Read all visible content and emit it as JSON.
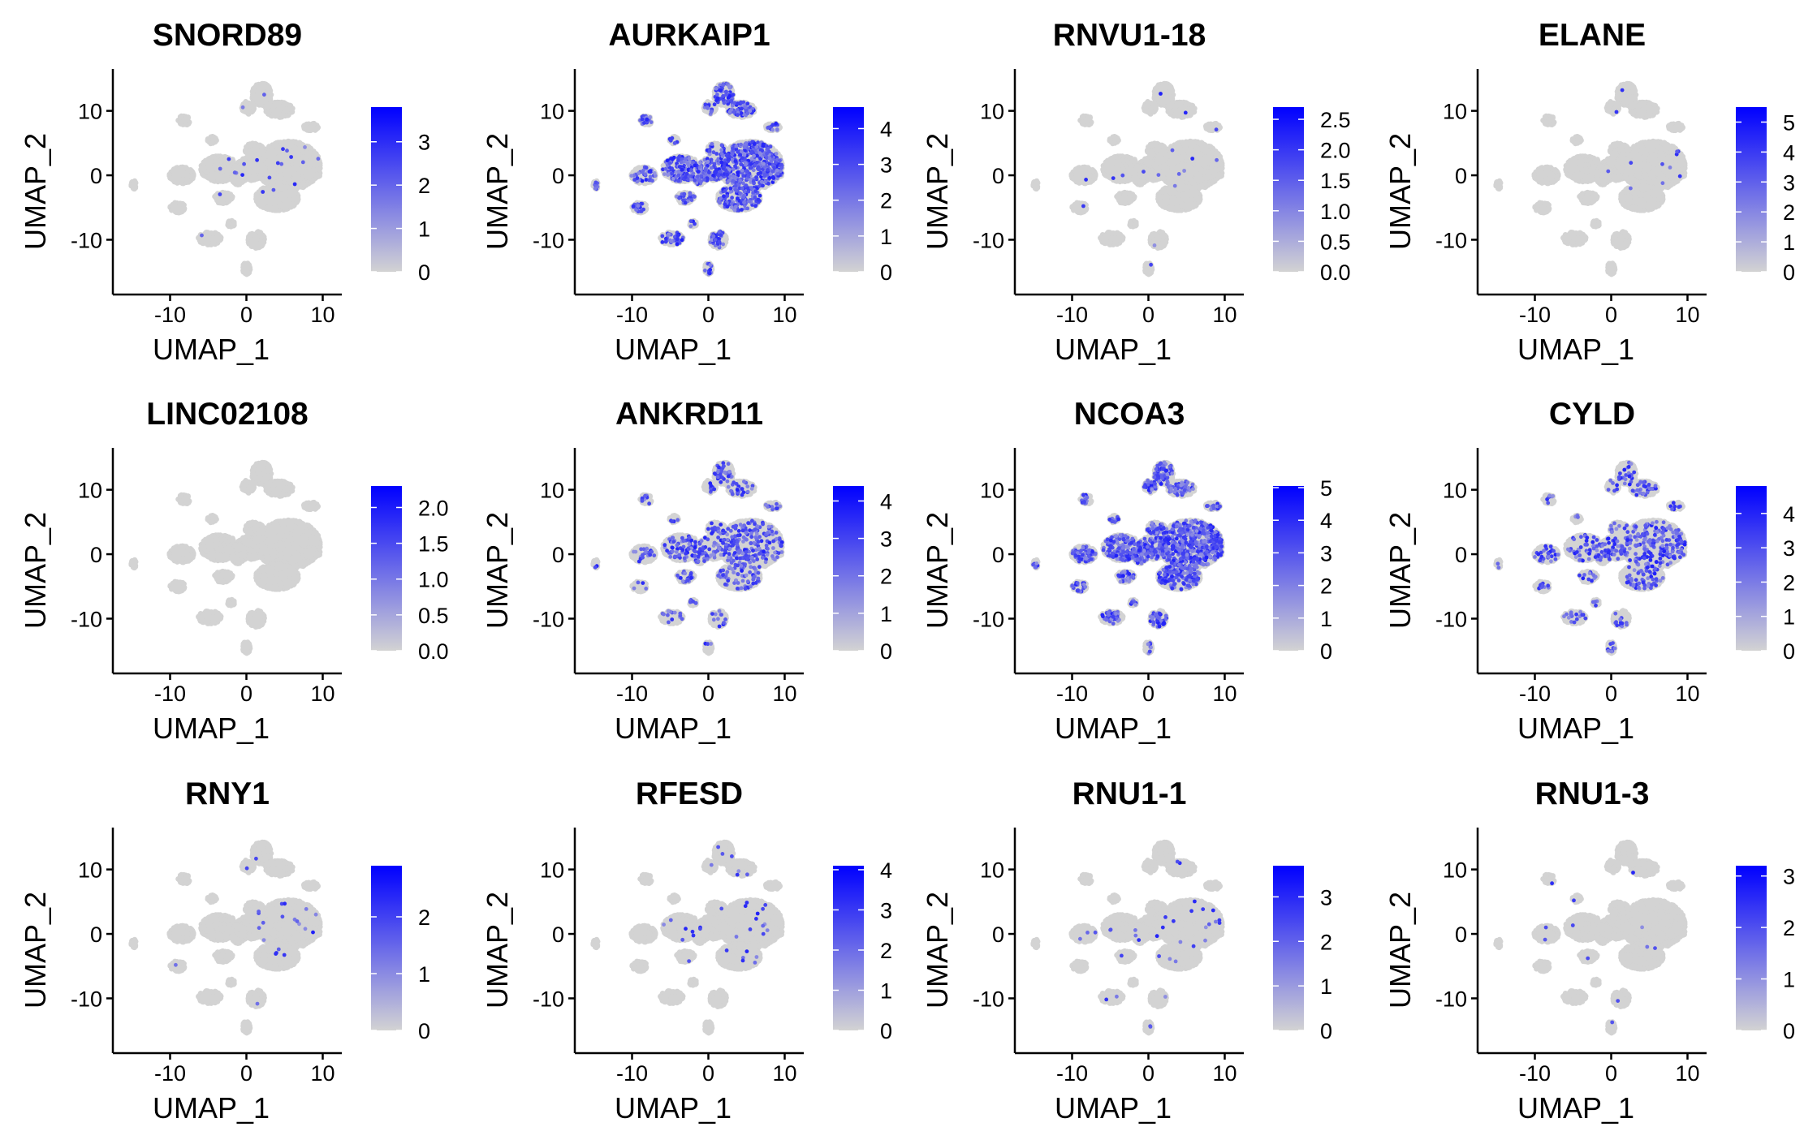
{
  "chart_data": {
    "type": "scatter",
    "xlabel": "UMAP_1",
    "ylabel": "UMAP_2",
    "xlim": [
      -17.5,
      12.5
    ],
    "ylim": [
      -18.5,
      16.5
    ],
    "xticks": [
      {
        "v": -10,
        "label": "-10"
      },
      {
        "v": 0,
        "label": "0"
      },
      {
        "v": 10,
        "label": "10"
      }
    ],
    "yticks": [
      {
        "v": 10,
        "label": "10"
      },
      {
        "v": 0,
        "label": "0"
      },
      {
        "v": -10,
        "label": "-10"
      }
    ],
    "colors": {
      "low": "#d3d3d3",
      "high": "#0000ff",
      "background_cells": "#d3d3d3"
    },
    "panels": [
      {
        "title": "SNORD89",
        "colorbar": {
          "min": 0,
          "max": 3.8,
          "ticks": [
            {
              "v": 0,
              "label": "0"
            },
            {
              "v": 1,
              "label": "1"
            },
            {
              "v": 2,
              "label": "2"
            },
            {
              "v": 3,
              "label": "3"
            }
          ]
        },
        "density": 0.004
      },
      {
        "title": "AURKAIP1",
        "colorbar": {
          "min": 0,
          "max": 4.6,
          "ticks": [
            {
              "v": 0,
              "label": "0"
            },
            {
              "v": 1,
              "label": "1"
            },
            {
              "v": 2,
              "label": "2"
            },
            {
              "v": 3,
              "label": "3"
            },
            {
              "v": 4,
              "label": "4"
            }
          ]
        },
        "density": 0.22
      },
      {
        "title": "RNVU1-18",
        "colorbar": {
          "min": 0,
          "max": 2.7,
          "ticks": [
            {
              "v": 0,
              "label": "0.0"
            },
            {
              "v": 0.5,
              "label": "0.5"
            },
            {
              "v": 1,
              "label": "1.0"
            },
            {
              "v": 1.5,
              "label": "1.5"
            },
            {
              "v": 2,
              "label": "2.0"
            },
            {
              "v": 2.5,
              "label": "2.5"
            }
          ]
        },
        "density": 0.003
      },
      {
        "title": "ELANE",
        "colorbar": {
          "min": 0,
          "max": 5.5,
          "ticks": [
            {
              "v": 0,
              "label": "0"
            },
            {
              "v": 1,
              "label": "1"
            },
            {
              "v": 2,
              "label": "2"
            },
            {
              "v": 3,
              "label": "3"
            },
            {
              "v": 4,
              "label": "4"
            },
            {
              "v": 5,
              "label": "5"
            }
          ]
        },
        "density": 0.002
      },
      {
        "title": "LINC02108",
        "colorbar": {
          "min": 0,
          "max": 2.3,
          "ticks": [
            {
              "v": 0,
              "label": "0.0"
            },
            {
              "v": 0.5,
              "label": "0.5"
            },
            {
              "v": 1,
              "label": "1.0"
            },
            {
              "v": 1.5,
              "label": "1.5"
            },
            {
              "v": 2,
              "label": "2.0"
            }
          ]
        },
        "density": 0.0
      },
      {
        "title": "ANKRD11",
        "colorbar": {
          "min": 0,
          "max": 4.4,
          "ticks": [
            {
              "v": 0,
              "label": "0"
            },
            {
              "v": 1,
              "label": "1"
            },
            {
              "v": 2,
              "label": "2"
            },
            {
              "v": 3,
              "label": "3"
            },
            {
              "v": 4,
              "label": "4"
            }
          ]
        },
        "density": 0.1
      },
      {
        "title": "NCOA3",
        "colorbar": {
          "min": 0,
          "max": 5.05,
          "ticks": [
            {
              "v": 0,
              "label": "0"
            },
            {
              "v": 1,
              "label": "1"
            },
            {
              "v": 2,
              "label": "2"
            },
            {
              "v": 3,
              "label": "3"
            },
            {
              "v": 4,
              "label": "4"
            },
            {
              "v": 5,
              "label": "5"
            }
          ]
        },
        "density": 0.24
      },
      {
        "title": "CYLD",
        "colorbar": {
          "min": 0,
          "max": 4.8,
          "ticks": [
            {
              "v": 0,
              "label": "0"
            },
            {
              "v": 1,
              "label": "1"
            },
            {
              "v": 2,
              "label": "2"
            },
            {
              "v": 3,
              "label": "3"
            },
            {
              "v": 4,
              "label": "4"
            }
          ]
        },
        "density": 0.09
      },
      {
        "title": "RNY1",
        "colorbar": {
          "min": 0,
          "max": 2.9,
          "ticks": [
            {
              "v": 0,
              "label": "0"
            },
            {
              "v": 1,
              "label": "1"
            },
            {
              "v": 2,
              "label": "2"
            }
          ]
        },
        "density": 0.004
      },
      {
        "title": "RFESD",
        "colorbar": {
          "min": 0,
          "max": 4.1,
          "ticks": [
            {
              "v": 0,
              "label": "0"
            },
            {
              "v": 1,
              "label": "1"
            },
            {
              "v": 2,
              "label": "2"
            },
            {
              "v": 3,
              "label": "3"
            },
            {
              "v": 4,
              "label": "4"
            }
          ]
        },
        "density": 0.006
      },
      {
        "title": "RNU1-1",
        "colorbar": {
          "min": 0,
          "max": 3.7,
          "ticks": [
            {
              "v": 0,
              "label": "0"
            },
            {
              "v": 1,
              "label": "1"
            },
            {
              "v": 2,
              "label": "2"
            },
            {
              "v": 3,
              "label": "3"
            }
          ]
        },
        "density": 0.006
      },
      {
        "title": "RNU1-3",
        "colorbar": {
          "min": 0,
          "max": 3.2,
          "ticks": [
            {
              "v": 0,
              "label": "0"
            },
            {
              "v": 1,
              "label": "1"
            },
            {
              "v": 2,
              "label": "2"
            },
            {
              "v": 3,
              "label": "3"
            }
          ]
        },
        "density": 0.002
      }
    ],
    "clusters": [
      {
        "cx": 2.0,
        "cy": 12.5,
        "rx": 1.3,
        "ry": 1.8
      },
      {
        "cx": 4.3,
        "cy": 10.2,
        "rx": 1.8,
        "ry": 1.2
      },
      {
        "cx": 0.2,
        "cy": 10.5,
        "rx": 0.8,
        "ry": 1.0
      },
      {
        "cx": 8.5,
        "cy": 7.5,
        "rx": 1.0,
        "ry": 0.6
      },
      {
        "cx": -8.2,
        "cy": 8.5,
        "rx": 0.8,
        "ry": 0.8
      },
      {
        "cx": -4.5,
        "cy": 5.5,
        "rx": 0.6,
        "ry": 0.6
      },
      {
        "cx": 5.5,
        "cy": 1.5,
        "rx": 4.2,
        "ry": 3.8
      },
      {
        "cx": 4.0,
        "cy": -3.5,
        "rx": 2.8,
        "ry": 2.0
      },
      {
        "cx": 0.5,
        "cy": 1.0,
        "rx": 2.0,
        "ry": 1.8
      },
      {
        "cx": 1.0,
        "cy": 4.0,
        "rx": 1.2,
        "ry": 1.0
      },
      {
        "cx": -3.5,
        "cy": 1.0,
        "rx": 2.5,
        "ry": 2.0
      },
      {
        "cx": -8.5,
        "cy": 0.0,
        "rx": 1.6,
        "ry": 1.3
      },
      {
        "cx": -9.0,
        "cy": -5.0,
        "rx": 1.0,
        "ry": 0.8
      },
      {
        "cx": -3.0,
        "cy": -3.5,
        "rx": 1.2,
        "ry": 0.9
      },
      {
        "cx": -1.0,
        "cy": 0.0,
        "rx": 1.0,
        "ry": 1.5
      },
      {
        "cx": 8.5,
        "cy": 0.2,
        "rx": 1.2,
        "ry": 0.8
      },
      {
        "cx": -4.8,
        "cy": -9.8,
        "rx": 1.5,
        "ry": 1.0
      },
      {
        "cx": 1.3,
        "cy": -10.0,
        "rx": 1.1,
        "ry": 1.3
      },
      {
        "cx": 0.0,
        "cy": -14.5,
        "rx": 0.5,
        "ry": 1.0
      },
      {
        "cx": -14.8,
        "cy": -1.5,
        "rx": 0.35,
        "ry": 0.7
      },
      {
        "cx": -2.0,
        "cy": -7.5,
        "rx": 0.5,
        "ry": 0.5
      }
    ]
  }
}
